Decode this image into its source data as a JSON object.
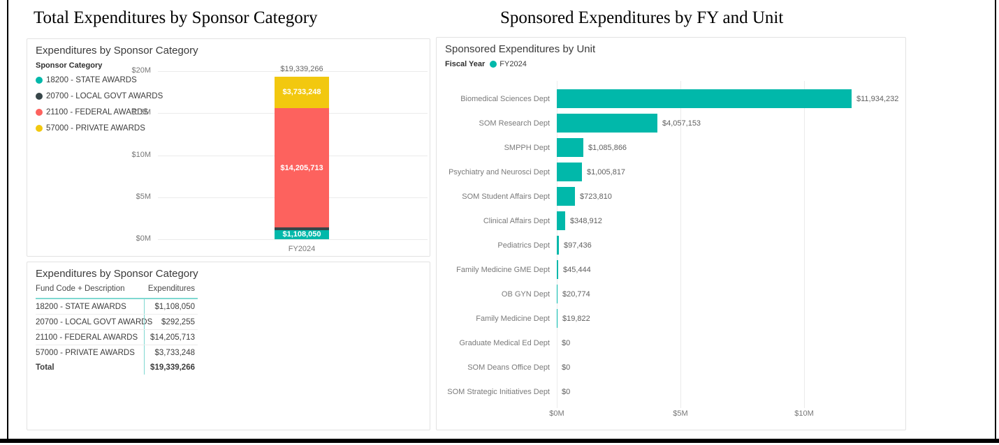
{
  "page": {
    "heading_left": "Total Expenditures by Sponsor Category",
    "heading_right": "Sponsored Expenditures by FY and Unit"
  },
  "colors": {
    "accent_teal": "#01B8AA",
    "dark": "#374649",
    "red": "#FD625E",
    "yellow": "#F2C80F",
    "axis_text": "#777777",
    "label_text": "#7A7A7A",
    "value_text": "#5F5F5F",
    "title_text": "#3A3A3A",
    "grid_line": "#EBEBEB",
    "panel_border": "#E2E2E2",
    "table_accent": "#7FD8D1",
    "frame_black": "#000000"
  },
  "chart_data": [
    {
      "type": "bar",
      "subtype": "stacked-column",
      "title": "Expenditures by Sponsor Category",
      "legend_title": "Sponsor Category",
      "legend_position": "left",
      "grid": true,
      "categories": [
        "FY2024"
      ],
      "series": [
        {
          "name": "18200 - STATE AWARDS",
          "color": "#01B8AA",
          "values": [
            1108050
          ],
          "data_label": "$1,108,050"
        },
        {
          "name": "20700 - LOCAL GOVT AWARDS",
          "color": "#374649",
          "values": [
            292255
          ],
          "data_label": ""
        },
        {
          "name": "21100 - FEDERAL AWARDS",
          "color": "#FD625E",
          "values": [
            14205713
          ],
          "data_label": "$14,205,713"
        },
        {
          "name": "57000 - PRIVATE AWARDS",
          "color": "#F2C80F",
          "values": [
            3733248
          ],
          "data_label": "$3,733,248"
        }
      ],
      "total_value": 19339266,
      "total_label": "$19,339,266",
      "y_ticks_top_to_bottom": [
        "$20M",
        "$15M",
        "$10M",
        "$5M",
        "$0M"
      ],
      "ylim": [
        0,
        20000000
      ],
      "xlabel": "",
      "ylabel": ""
    },
    {
      "type": "table",
      "title": "Expenditures by Sponsor Category",
      "columns": [
        "Fund Code + Description",
        "Expenditures"
      ],
      "rows": [
        [
          "18200 - STATE AWARDS",
          "$1,108,050"
        ],
        [
          "20700 - LOCAL GOVT AWARDS",
          "$292,255"
        ],
        [
          "21100 - FEDERAL AWARDS",
          "$14,205,713"
        ],
        [
          "57000 - PRIVATE AWARDS",
          "$3,733,248"
        ]
      ],
      "total_row": [
        "Total",
        "$19,339,266"
      ]
    },
    {
      "type": "bar",
      "subtype": "horizontal-bar",
      "title": "Sponsored Expenditures by Unit",
      "legend_title": "Fiscal Year",
      "legend_items": [
        {
          "label": "FY2024",
          "color": "#01B8AA"
        }
      ],
      "grid": true,
      "categories": [
        "Biomedical Sciences Dept",
        "SOM Research Dept",
        "SMPPH Dept",
        "Psychiatry and Neurosci Dept",
        "SOM Student Affairs Dept",
        "Clinical Affairs Dept",
        "Pediatrics Dept",
        "Family Medicine GME Dept",
        "OB GYN Dept",
        "Family Medicine Dept",
        "Graduate Medical Ed Dept",
        "SOM Deans Office Dept",
        "SOM Strategic Initiatives Dept"
      ],
      "values": [
        11934232,
        4057153,
        1085866,
        1005817,
        723810,
        348912,
        97436,
        45444,
        20774,
        19822,
        0,
        0,
        0
      ],
      "value_labels": [
        "$11,934,232",
        "$4,057,153",
        "$1,085,866",
        "$1,005,817",
        "$723,810",
        "$348,912",
        "$97,436",
        "$45,444",
        "$20,774",
        "$19,822",
        "$0",
        "$0",
        "$0"
      ],
      "x_ticks": [
        {
          "label": "$0M",
          "value": 0
        },
        {
          "label": "$5M",
          "value": 5000000
        },
        {
          "label": "$10M",
          "value": 10000000
        }
      ],
      "xlim": [
        0,
        14000000
      ],
      "xlabel": "",
      "ylabel": ""
    }
  ]
}
